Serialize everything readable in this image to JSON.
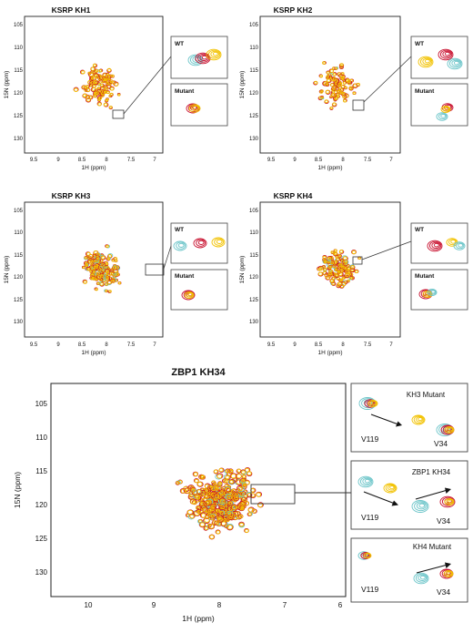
{
  "figure": {
    "panels": [
      {
        "title": "KSRP KH1",
        "xlabel": "1H (ppm)",
        "ylabel": "15N (ppm)",
        "xticks": [
          "9.5",
          "9",
          "8.5",
          "8",
          "7.5",
          "7"
        ],
        "yticks": [
          "105",
          "110",
          "115",
          "120",
          "125",
          "130"
        ],
        "insets": [
          "WT",
          "Mutant"
        ]
      },
      {
        "title": "KSRP KH2",
        "xlabel": "1H (ppm)",
        "ylabel": "15N (ppm)",
        "xticks": [
          "9.5",
          "9",
          "8.5",
          "8",
          "7.5",
          "7"
        ],
        "yticks": [
          "105",
          "110",
          "115",
          "120",
          "125",
          "130"
        ],
        "insets": [
          "WT",
          "Mutant"
        ]
      },
      {
        "title": "KSRP KH3",
        "xlabel": "1H (ppm)",
        "ylabel": "15N (ppm)",
        "xticks": [
          "9.5",
          "9",
          "8.5",
          "8",
          "7.5",
          "7"
        ],
        "yticks": [
          "105",
          "110",
          "115",
          "120",
          "125",
          "130"
        ],
        "insets": [
          "WT",
          "Mutant"
        ]
      },
      {
        "title": "KSRP KH4",
        "xlabel": "1H (ppm)",
        "ylabel": "15N (ppm)",
        "xticks": [
          "9.5",
          "9",
          "8.5",
          "8",
          "7.5",
          "7"
        ],
        "yticks": [
          "105",
          "110",
          "115",
          "120",
          "125",
          "130"
        ],
        "insets": [
          "WT",
          "Mutant"
        ]
      }
    ],
    "large": {
      "title": "ZBP1 KH34",
      "xlabel": "1H (ppm)",
      "ylabel": "15N (ppm)",
      "xticks": [
        "10",
        "9",
        "8",
        "7",
        "6"
      ],
      "yticks": [
        "105",
        "110",
        "115",
        "120",
        "125",
        "130"
      ],
      "insets": [
        {
          "title": "KH3 Mutant",
          "left": "V119",
          "right": "V34"
        },
        {
          "title": "ZBP1 KH34",
          "left": "V119",
          "right": "V34"
        },
        {
          "title": "KH4 Mutant",
          "left": "V119",
          "right": "V34"
        }
      ]
    },
    "colors": {
      "red": "#c8102e",
      "yellow": "#f2c200",
      "cyan": "#6cc5c9"
    }
  }
}
